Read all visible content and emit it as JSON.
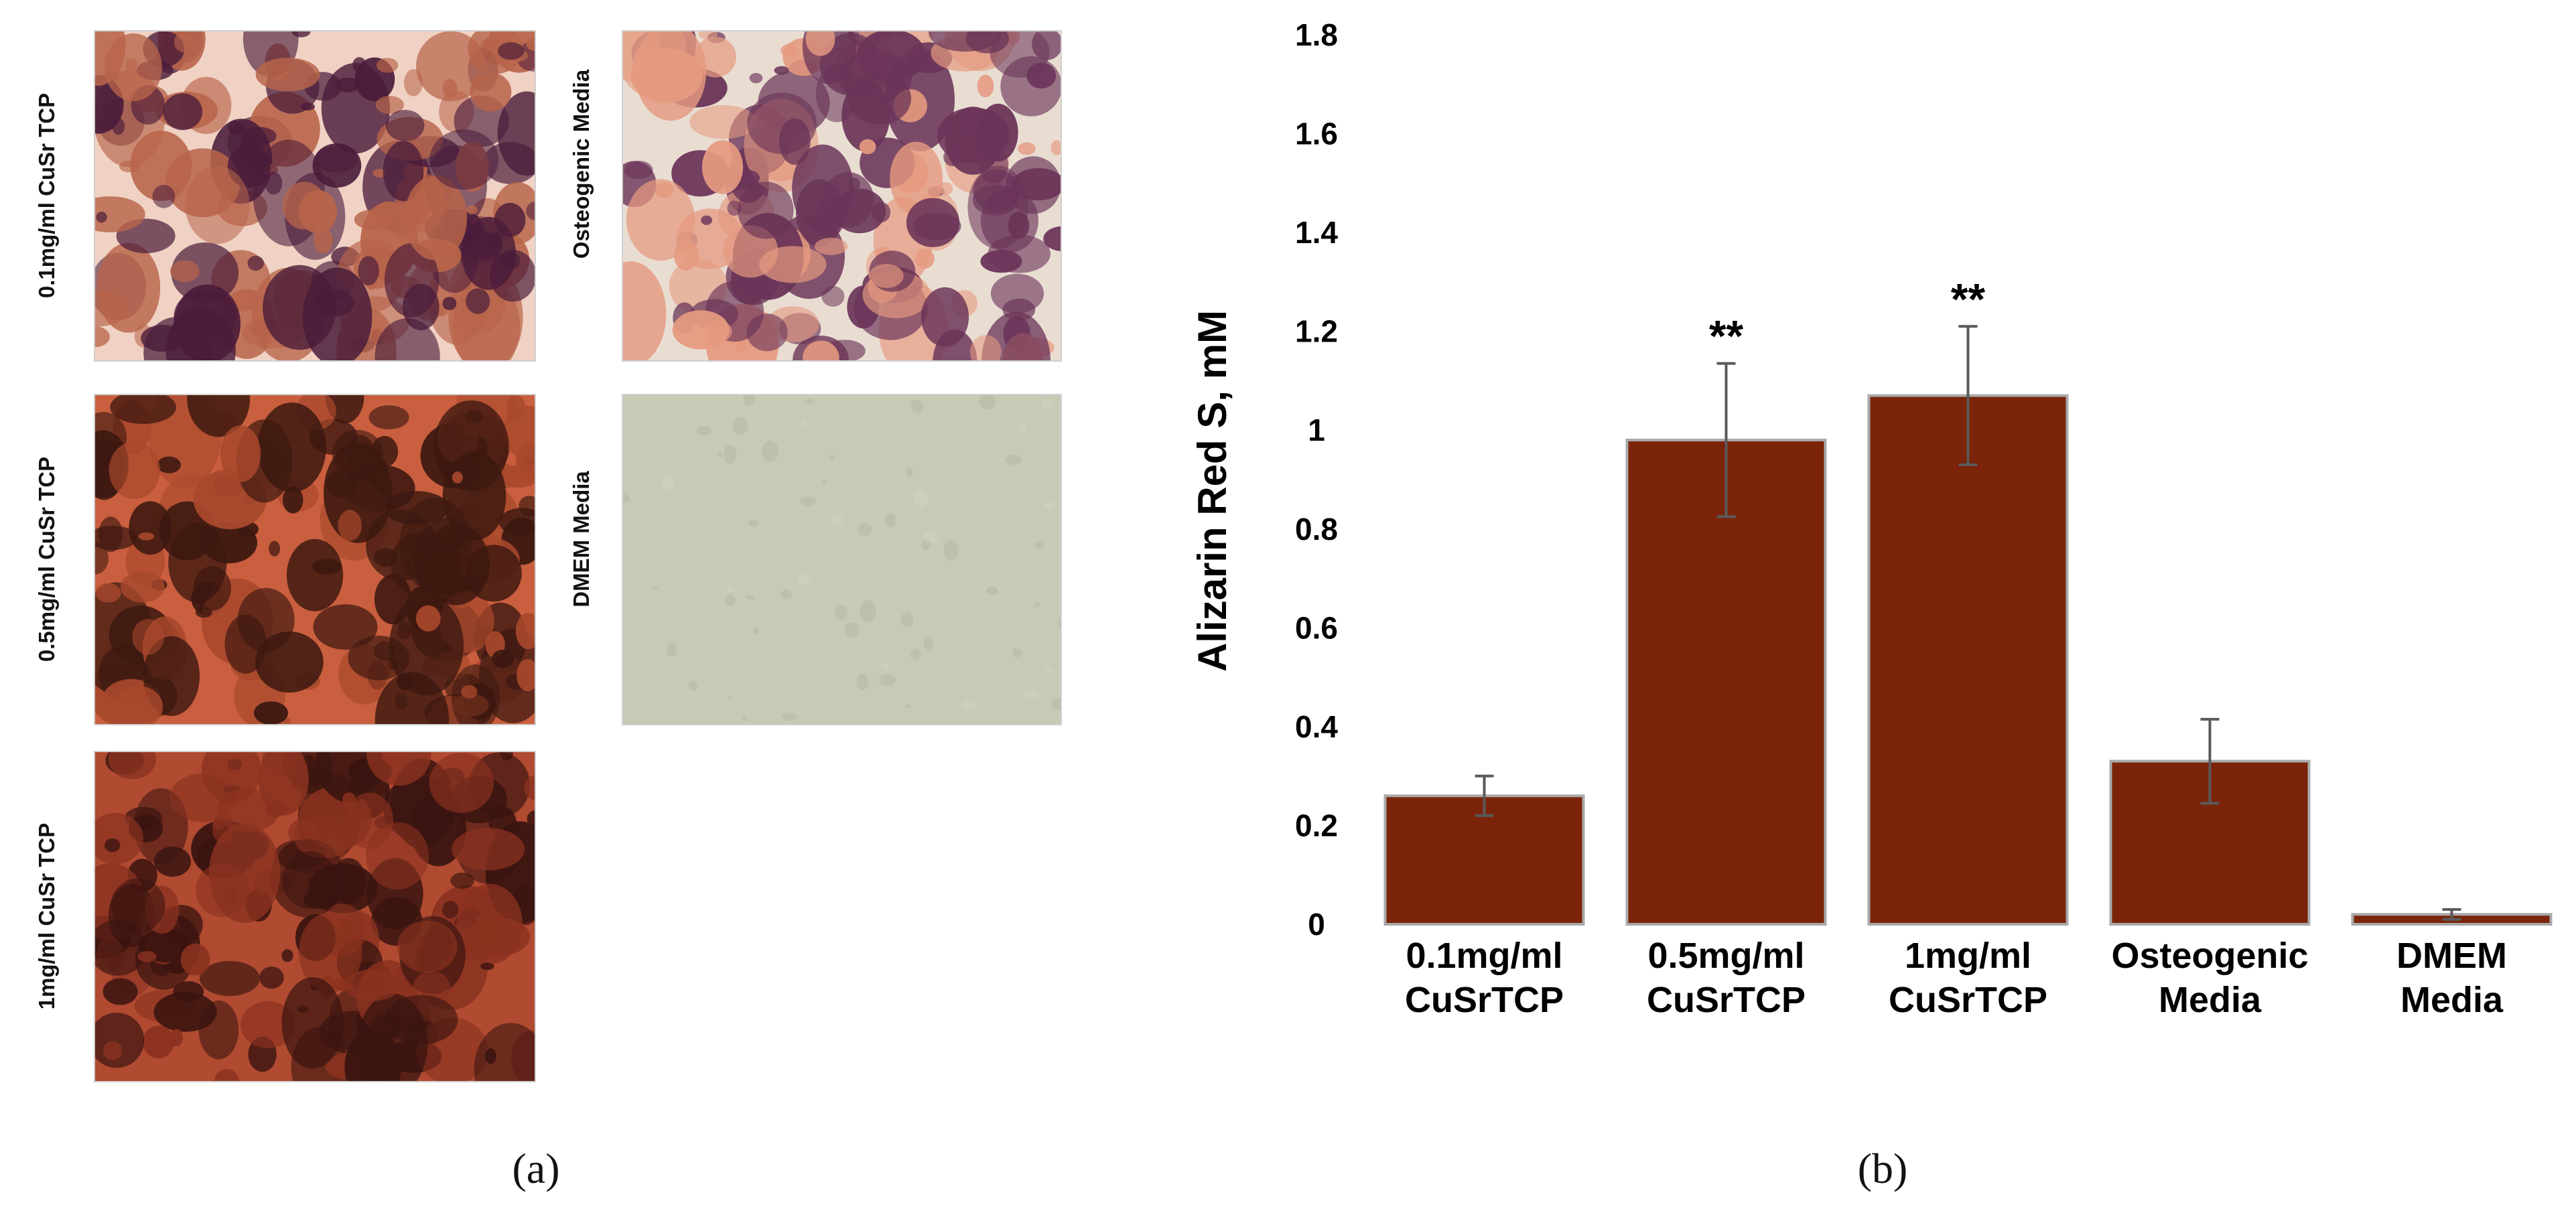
{
  "panel_a": {
    "images": [
      {
        "label": "0.1mg/ml CuSr TCP",
        "palette": [
          "#f0d2c4",
          "#4a1c3a",
          "#b8644a"
        ]
      },
      {
        "label": "0.5mg/ml CuSr TCP",
        "palette": [
          "#c95f3e",
          "#3c1810",
          "#a8482c"
        ]
      },
      {
        "label": "1mg/ml CuSr TCP",
        "palette": [
          "#b04a30",
          "#3a1410",
          "#8a3220"
        ]
      },
      {
        "label": "Osteogenic Media",
        "palette": [
          "#e9ddd2",
          "#6a3458",
          "#e59a80"
        ]
      },
      {
        "label": "DMEM Media",
        "palette": [
          "#c6cbb6",
          "#a9af99",
          "#d4d8c6"
        ]
      }
    ],
    "caption": "(a)"
  },
  "panel_b": {
    "caption": "(b)"
  },
  "chart_data": {
    "type": "bar",
    "categories": [
      [
        "0.1mg/ml",
        "CuSrTCP"
      ],
      [
        "0.5mg/ml",
        "CuSrTCP"
      ],
      [
        "1mg/ml",
        "CuSrTCP"
      ],
      [
        "Osteogenic",
        "Media"
      ],
      [
        "DMEM",
        "Media"
      ]
    ],
    "values": [
      0.26,
      0.98,
      1.07,
      0.33,
      0.02
    ],
    "error": [
      0.04,
      0.155,
      0.14,
      0.085,
      0.01
    ],
    "significance": [
      "",
      "**",
      "**",
      "",
      ""
    ],
    "ylabel": "Alizarin Red S, mM",
    "ylim": [
      0,
      1.8
    ],
    "yticks": [
      0,
      0.2,
      0.4,
      0.6,
      0.8,
      1,
      1.2,
      1.4,
      1.6,
      1.8
    ],
    "ytick_labels": [
      "0",
      "0.2",
      "0.4",
      "0.6",
      "0.8",
      "1",
      "1.2",
      "1.4",
      "1.6",
      "1.8"
    ],
    "grid": false,
    "bar_color": "#7b2409",
    "bar_edge_color": "#a9a9a9",
    "error_color": "#5a5a5a"
  }
}
